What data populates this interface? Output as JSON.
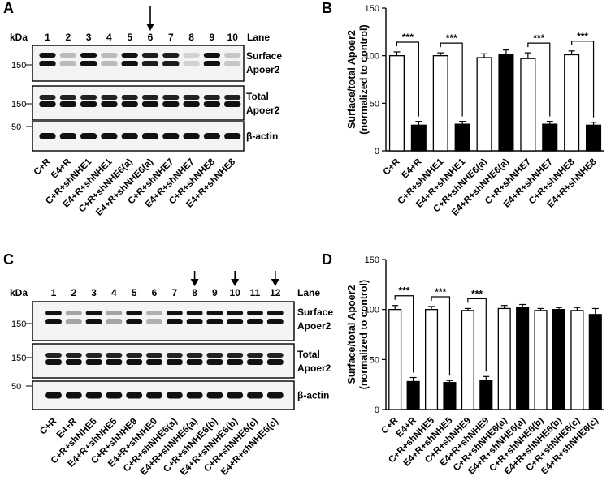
{
  "panels": [
    {
      "letter": "A",
      "kda_label": "kDa",
      "lane_label": "Lane",
      "lanes": [
        "1",
        "2",
        "3",
        "4",
        "5",
        "6",
        "7",
        "8",
        "9",
        "10"
      ],
      "arrow_lanes": [
        6
      ],
      "rows": [
        {
          "marker": "150",
          "label": [
            "Surface",
            "Apoer2"
          ]
        },
        {
          "marker": "150",
          "label": [
            "Total",
            "Apoer2"
          ]
        },
        {
          "marker": "50",
          "label": [
            "β-actin"
          ]
        }
      ],
      "categories": [
        "C+R",
        "E4+R",
        "C+R+shNHE1",
        "E4+R+shNHE1",
        "C+R+shNHE6(a)",
        "E4+R+shNHE6(a)",
        "C+R+shNHE7",
        "E4+R+shNHE7",
        "C+R+shNHE8",
        "E4+R+shNHE8"
      ]
    },
    {
      "letter": "C",
      "kda_label": "kDa",
      "lane_label": "Lane",
      "lanes": [
        "1",
        "2",
        "3",
        "4",
        "5",
        "6",
        "7",
        "8",
        "9",
        "10",
        "11",
        "12"
      ],
      "arrow_lanes": [
        8,
        10,
        12
      ],
      "rows": [
        {
          "marker": "150",
          "label": [
            "Surface",
            "Apoer2"
          ]
        },
        {
          "marker": "150",
          "label": [
            "Total",
            "Apoer2"
          ]
        },
        {
          "marker": "50",
          "label": [
            "β-actin"
          ]
        }
      ],
      "categories": [
        "C+R",
        "E4+R",
        "C+R+shNHE5",
        "E4+R+shNHE5",
        "C+R+shNHE9",
        "E4+R+shNHE9",
        "C+R+shNHE6(a)",
        "E4+R+shNHE6(a)",
        "C+R+shNHE6(b)",
        "E4+R+shNHE6(b)",
        "C+R+shNHE6(c)",
        "E4+R+shNHE6(c)"
      ]
    }
  ],
  "chart_data": [
    {
      "panel": "B",
      "type": "bar",
      "ylabel": [
        "Surface/total Apoer2",
        "(normalized to control)"
      ],
      "ylim": [
        0,
        150
      ],
      "yticks": [
        "0",
        "50",
        "100",
        "150"
      ],
      "categories": [
        "C+R",
        "E4+R",
        "C+R+shNHE1",
        "E4+R+shNHE1",
        "C+R+shNHE6(a)",
        "E4+R+shNHE6(a)",
        "C+R+shNHE7",
        "E4+R+shNHE7",
        "C+R+shNHE8",
        "E4+R+shNHE8"
      ],
      "values": [
        100,
        27,
        100,
        28,
        98,
        101,
        97,
        28,
        101,
        27
      ],
      "errors": [
        4,
        4,
        3,
        3,
        4,
        5,
        6,
        3,
        4,
        3
      ],
      "fills": [
        "open",
        "filled",
        "open",
        "filled",
        "open",
        "filled",
        "open",
        "filled",
        "open",
        "filled"
      ],
      "significance": [
        {
          "pair": [
            0,
            1
          ],
          "label": "***"
        },
        {
          "pair": [
            2,
            3
          ],
          "label": "***"
        },
        {
          "pair": [
            6,
            7
          ],
          "label": "***"
        },
        {
          "pair": [
            8,
            9
          ],
          "label": "***"
        }
      ]
    },
    {
      "panel": "D",
      "type": "bar",
      "ylabel": [
        "Surface/total Apoer2",
        "(normalized to control)"
      ],
      "ylim": [
        0,
        150
      ],
      "yticks": [
        "0",
        "50",
        "100",
        "150"
      ],
      "categories": [
        "C+R",
        "E4+R",
        "C+R+shNHE5",
        "E4+R+shNHE5",
        "C+R+shNHE9",
        "E4+R+shNHE9",
        "C+R+shNHE6(a)",
        "E4+R+shNHE6(a)",
        "C+R+shNHE6(b)",
        "E4+R+shNHE6(b)",
        "C+R+shNHE6(c)",
        "E4+R+shNHE6(c)"
      ],
      "values": [
        100,
        28,
        100,
        27,
        99,
        29,
        101,
        102,
        99,
        100,
        99,
        95
      ],
      "errors": [
        4,
        4,
        3,
        2,
        2,
        4,
        3,
        3,
        2,
        2,
        3,
        6
      ],
      "fills": [
        "open",
        "filled",
        "open",
        "filled",
        "open",
        "filled",
        "open",
        "filled",
        "open",
        "filled",
        "open",
        "filled"
      ],
      "significance": [
        {
          "pair": [
            0,
            1
          ],
          "label": "***"
        },
        {
          "pair": [
            2,
            3
          ],
          "label": "***"
        },
        {
          "pair": [
            4,
            5
          ],
          "label": "***"
        }
      ]
    }
  ]
}
